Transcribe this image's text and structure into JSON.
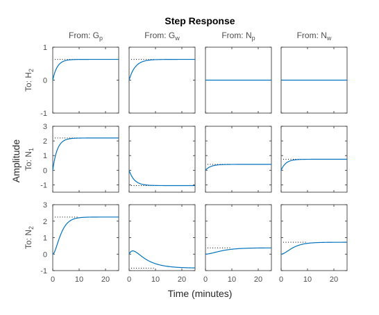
{
  "chart_data": {
    "type": "line",
    "title": "Step Response",
    "xlabel": "Time (minutes)",
    "ylabel": "Amplitude",
    "xlim": [
      0,
      25
    ],
    "x_ticks": [
      "0",
      "10",
      "20"
    ],
    "x_tick_values": [
      0,
      10,
      20
    ],
    "line_color": "#0072bd",
    "final_value_line_color": "#000000",
    "columns": [
      {
        "prefix": "From: ",
        "main": "G",
        "sub": "p"
      },
      {
        "prefix": "From: ",
        "main": "G",
        "sub": "w"
      },
      {
        "prefix": "From: ",
        "main": "N",
        "sub": "p"
      },
      {
        "prefix": "From: ",
        "main": "N",
        "sub": "w"
      }
    ],
    "rows": [
      {
        "prefix": "To: ",
        "main": "H",
        "sub": "2",
        "ylim": [
          -1,
          1
        ],
        "y_ticks": [
          "-1",
          "0",
          "1"
        ],
        "y_tick_values": [
          -1,
          0,
          1
        ]
      },
      {
        "prefix": "To: ",
        "main": "N",
        "sub": "1",
        "ylim": [
          -1.5,
          3
        ],
        "y_ticks": [
          "-1",
          "0",
          "1",
          "2",
          "3"
        ],
        "y_tick_values": [
          -1,
          0,
          1,
          2,
          3
        ]
      },
      {
        "prefix": "To: ",
        "main": "N",
        "sub": "2",
        "ylim": [
          -1,
          3
        ],
        "y_ticks": [
          "-1",
          "0",
          "1",
          "2",
          "3"
        ],
        "y_tick_values": [
          -1,
          0,
          1,
          2,
          3
        ]
      }
    ],
    "responses": [
      [
        {
          "final": 0.63,
          "tau": 1.7,
          "kind": "first"
        },
        {
          "final": 0.63,
          "tau": 2.3,
          "kind": "first"
        },
        {
          "final": 0,
          "tau": 1,
          "kind": "zero"
        },
        {
          "final": 0,
          "tau": 1,
          "kind": "zero"
        }
      ],
      [
        {
          "final": 2.2,
          "tau": 1.7,
          "kind": "first"
        },
        {
          "final": -1.05,
          "tau": 2.0,
          "kind": "first"
        },
        {
          "final": 0.4,
          "tau": 2.0,
          "kind": "first"
        },
        {
          "final": 0.75,
          "tau": 1.8,
          "kind": "first"
        }
      ],
      [
        {
          "final": 2.25,
          "tau": 1.7,
          "kind": "second"
        },
        {
          "final": -0.85,
          "tau": 4.0,
          "kind": "bump",
          "peak": 0.25,
          "peak_time": 2.0
        },
        {
          "final": 0.38,
          "tau": 3.5,
          "kind": "second"
        },
        {
          "final": 0.72,
          "tau": 2.5,
          "kind": "second"
        }
      ]
    ]
  }
}
